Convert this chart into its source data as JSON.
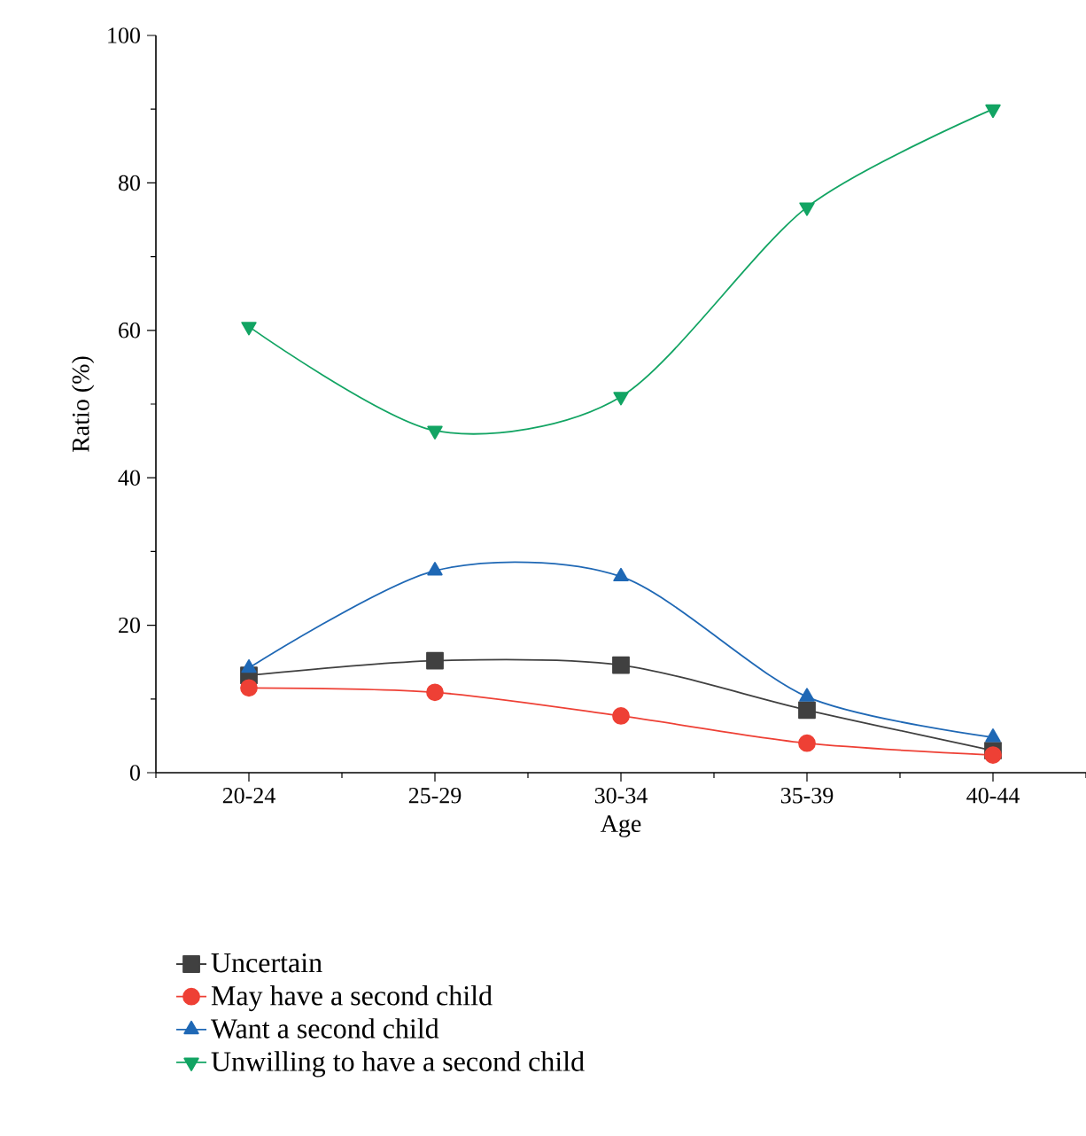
{
  "chart_data": {
    "type": "line",
    "xlabel": "Age",
    "ylabel": "Ratio (%)",
    "categories": [
      "20-24",
      "25-29",
      "30-34",
      "35-39",
      "40-44"
    ],
    "ylim": [
      0,
      100
    ],
    "yticks": [
      0,
      20,
      40,
      60,
      80,
      100
    ],
    "grid": false,
    "legend": "bottom",
    "series": [
      {
        "name": "Uncertain",
        "color": "#404040",
        "marker": "square",
        "values": [
          13.2,
          15.2,
          14.6,
          8.5,
          3.0
        ]
      },
      {
        "name": "May have a second child",
        "color": "#ee4035",
        "marker": "circle",
        "values": [
          11.5,
          10.9,
          7.7,
          4.0,
          2.4
        ]
      },
      {
        "name": "Want a second child",
        "color": "#1f68b5",
        "marker": "triangle",
        "values": [
          14.2,
          27.4,
          26.6,
          10.3,
          4.8
        ]
      },
      {
        "name": "Unwilling to have a second child",
        "color": "#12a463",
        "marker": "triangle-down",
        "values": [
          60.5,
          46.4,
          51.0,
          76.7,
          90.0
        ]
      }
    ]
  }
}
